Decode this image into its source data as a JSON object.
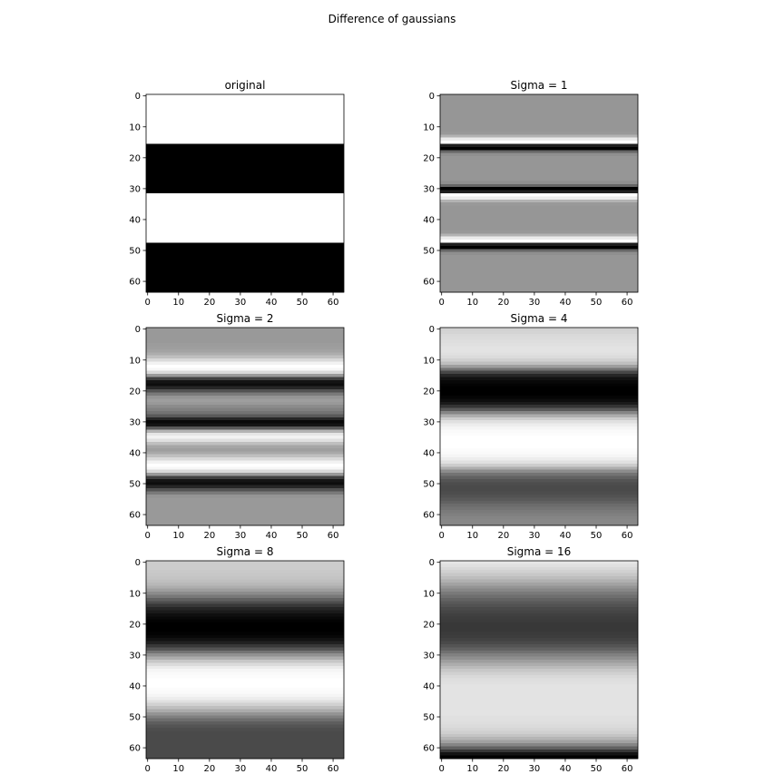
{
  "figure": {
    "suptitle": "Difference of gaussians"
  },
  "chart_data": [
    {
      "type": "heatmap",
      "title": "original",
      "colormap": "gray",
      "xlim": [
        0,
        63
      ],
      "ylim": [
        63,
        0
      ],
      "xticks": [
        0,
        10,
        20,
        30,
        40,
        50,
        60
      ],
      "yticks": [
        0,
        10,
        20,
        30,
        40,
        50,
        60
      ],
      "row_values": [
        1,
        1,
        1,
        1,
        1,
        1,
        1,
        1,
        1,
        1,
        1,
        1,
        1,
        1,
        1,
        1,
        0,
        0,
        0,
        0,
        0,
        0,
        0,
        0,
        0,
        0,
        0,
        0,
        0,
        0,
        0,
        0,
        1,
        1,
        1,
        1,
        1,
        1,
        1,
        1,
        1,
        1,
        1,
        1,
        1,
        1,
        1,
        1,
        0,
        0,
        0,
        0,
        0,
        0,
        0,
        0,
        0,
        0,
        0,
        0,
        0,
        0,
        0,
        0
      ]
    },
    {
      "type": "heatmap",
      "title": "Sigma = 1",
      "colormap": "gray",
      "xlim": [
        0,
        63
      ],
      "ylim": [
        63,
        0
      ],
      "xticks": [
        0,
        10,
        20,
        30,
        40,
        50,
        60
      ],
      "yticks": [
        0,
        10,
        20,
        30,
        40,
        50,
        60
      ],
      "row_values": [
        0.59,
        0.59,
        0.59,
        0.59,
        0.59,
        0.59,
        0.59,
        0.59,
        0.59,
        0.59,
        0.59,
        0.59,
        0.6,
        0.7,
        0.92,
        1.0,
        0.12,
        0.0,
        0.4,
        0.56,
        0.59,
        0.59,
        0.59,
        0.59,
        0.59,
        0.59,
        0.59,
        0.59,
        0.56,
        0.4,
        0.0,
        0.12,
        1.0,
        0.92,
        0.7,
        0.6,
        0.59,
        0.59,
        0.59,
        0.59,
        0.59,
        0.59,
        0.59,
        0.59,
        0.6,
        0.7,
        0.92,
        1.0,
        0.12,
        0.0,
        0.4,
        0.56,
        0.59,
        0.59,
        0.59,
        0.59,
        0.59,
        0.59,
        0.59,
        0.59,
        0.59,
        0.59,
        0.59,
        0.59
      ]
    },
    {
      "type": "heatmap",
      "title": "Sigma = 2",
      "colormap": "gray",
      "xlim": [
        0,
        63
      ],
      "ylim": [
        63,
        0
      ],
      "xticks": [
        0,
        10,
        20,
        30,
        40,
        50,
        60
      ],
      "yticks": [
        0,
        10,
        20,
        30,
        40,
        50,
        60
      ],
      "row_values": [
        0.6,
        0.6,
        0.6,
        0.6,
        0.6,
        0.61,
        0.62,
        0.64,
        0.68,
        0.75,
        0.85,
        0.95,
        1.0,
        0.97,
        0.85,
        0.6,
        0.25,
        0.08,
        0.05,
        0.15,
        0.32,
        0.48,
        0.58,
        0.62,
        0.6,
        0.55,
        0.5,
        0.45,
        0.35,
        0.15,
        0.03,
        0.08,
        0.35,
        0.7,
        0.9,
        0.95,
        0.88,
        0.75,
        0.65,
        0.62,
        0.66,
        0.75,
        0.85,
        0.95,
        1.0,
        0.97,
        0.85,
        0.6,
        0.25,
        0.08,
        0.05,
        0.15,
        0.32,
        0.48,
        0.58,
        0.6,
        0.6,
        0.6,
        0.6,
        0.6,
        0.6,
        0.6,
        0.6,
        0.6
      ]
    },
    {
      "type": "heatmap",
      "title": "Sigma = 4",
      "colormap": "gray",
      "xlim": [
        0,
        63
      ],
      "ylim": [
        63,
        0
      ],
      "xticks": [
        0,
        10,
        20,
        30,
        40,
        50,
        60
      ],
      "yticks": [
        0,
        10,
        20,
        30,
        40,
        50,
        60
      ],
      "row_values": [
        0.82,
        0.83,
        0.85,
        0.86,
        0.87,
        0.88,
        0.89,
        0.89,
        0.88,
        0.86,
        0.82,
        0.75,
        0.62,
        0.45,
        0.28,
        0.15,
        0.07,
        0.03,
        0.01,
        0.0,
        0.0,
        0.0,
        0.02,
        0.05,
        0.1,
        0.2,
        0.35,
        0.52,
        0.68,
        0.8,
        0.88,
        0.93,
        0.96,
        0.98,
        0.99,
        1.0,
        1.0,
        1.0,
        1.0,
        0.99,
        0.98,
        0.96,
        0.93,
        0.88,
        0.8,
        0.68,
        0.55,
        0.45,
        0.38,
        0.33,
        0.3,
        0.29,
        0.29,
        0.3,
        0.32,
        0.35,
        0.38,
        0.42,
        0.45,
        0.48,
        0.5,
        0.52,
        0.53,
        0.53
      ]
    },
    {
      "type": "heatmap",
      "title": "Sigma = 8",
      "colormap": "gray",
      "xlim": [
        0,
        63
      ],
      "ylim": [
        63,
        0
      ],
      "xticks": [
        0,
        10,
        20,
        30,
        40,
        50,
        60
      ],
      "yticks": [
        0,
        10,
        20,
        30,
        40,
        50,
        60
      ],
      "row_values": [
        0.8,
        0.8,
        0.8,
        0.79,
        0.78,
        0.77,
        0.75,
        0.72,
        0.68,
        0.62,
        0.55,
        0.47,
        0.38,
        0.3,
        0.22,
        0.15,
        0.1,
        0.06,
        0.03,
        0.01,
        0.0,
        0.0,
        0.0,
        0.01,
        0.03,
        0.07,
        0.13,
        0.22,
        0.33,
        0.45,
        0.57,
        0.68,
        0.78,
        0.86,
        0.92,
        0.96,
        0.98,
        0.99,
        1.0,
        1.0,
        1.0,
        0.99,
        0.98,
        0.96,
        0.93,
        0.88,
        0.82,
        0.75,
        0.67,
        0.58,
        0.5,
        0.43,
        0.37,
        0.33,
        0.3,
        0.29,
        0.29,
        0.29,
        0.29,
        0.29,
        0.29,
        0.29,
        0.29,
        0.29
      ]
    },
    {
      "type": "heatmap",
      "title": "Sigma = 16",
      "colormap": "gray",
      "xlim": [
        0,
        63
      ],
      "ylim": [
        63,
        0
      ],
      "xticks": [
        0,
        10,
        20,
        30,
        40,
        50,
        60
      ],
      "yticks": [
        0,
        10,
        20,
        30,
        40,
        50,
        60
      ],
      "row_values": [
        0.9,
        0.88,
        0.85,
        0.82,
        0.78,
        0.74,
        0.69,
        0.64,
        0.58,
        0.53,
        0.48,
        0.43,
        0.39,
        0.35,
        0.32,
        0.29,
        0.27,
        0.25,
        0.24,
        0.23,
        0.22,
        0.22,
        0.22,
        0.23,
        0.24,
        0.26,
        0.29,
        0.33,
        0.38,
        0.44,
        0.5,
        0.56,
        0.62,
        0.68,
        0.73,
        0.78,
        0.82,
        0.85,
        0.87,
        0.88,
        0.89,
        0.89,
        0.89,
        0.89,
        0.89,
        0.89,
        0.89,
        0.89,
        0.89,
        0.89,
        0.88,
        0.88,
        0.87,
        0.86,
        0.84,
        0.81,
        0.77,
        0.71,
        0.63,
        0.52,
        0.38,
        0.22,
        0.08,
        0.0
      ]
    }
  ]
}
